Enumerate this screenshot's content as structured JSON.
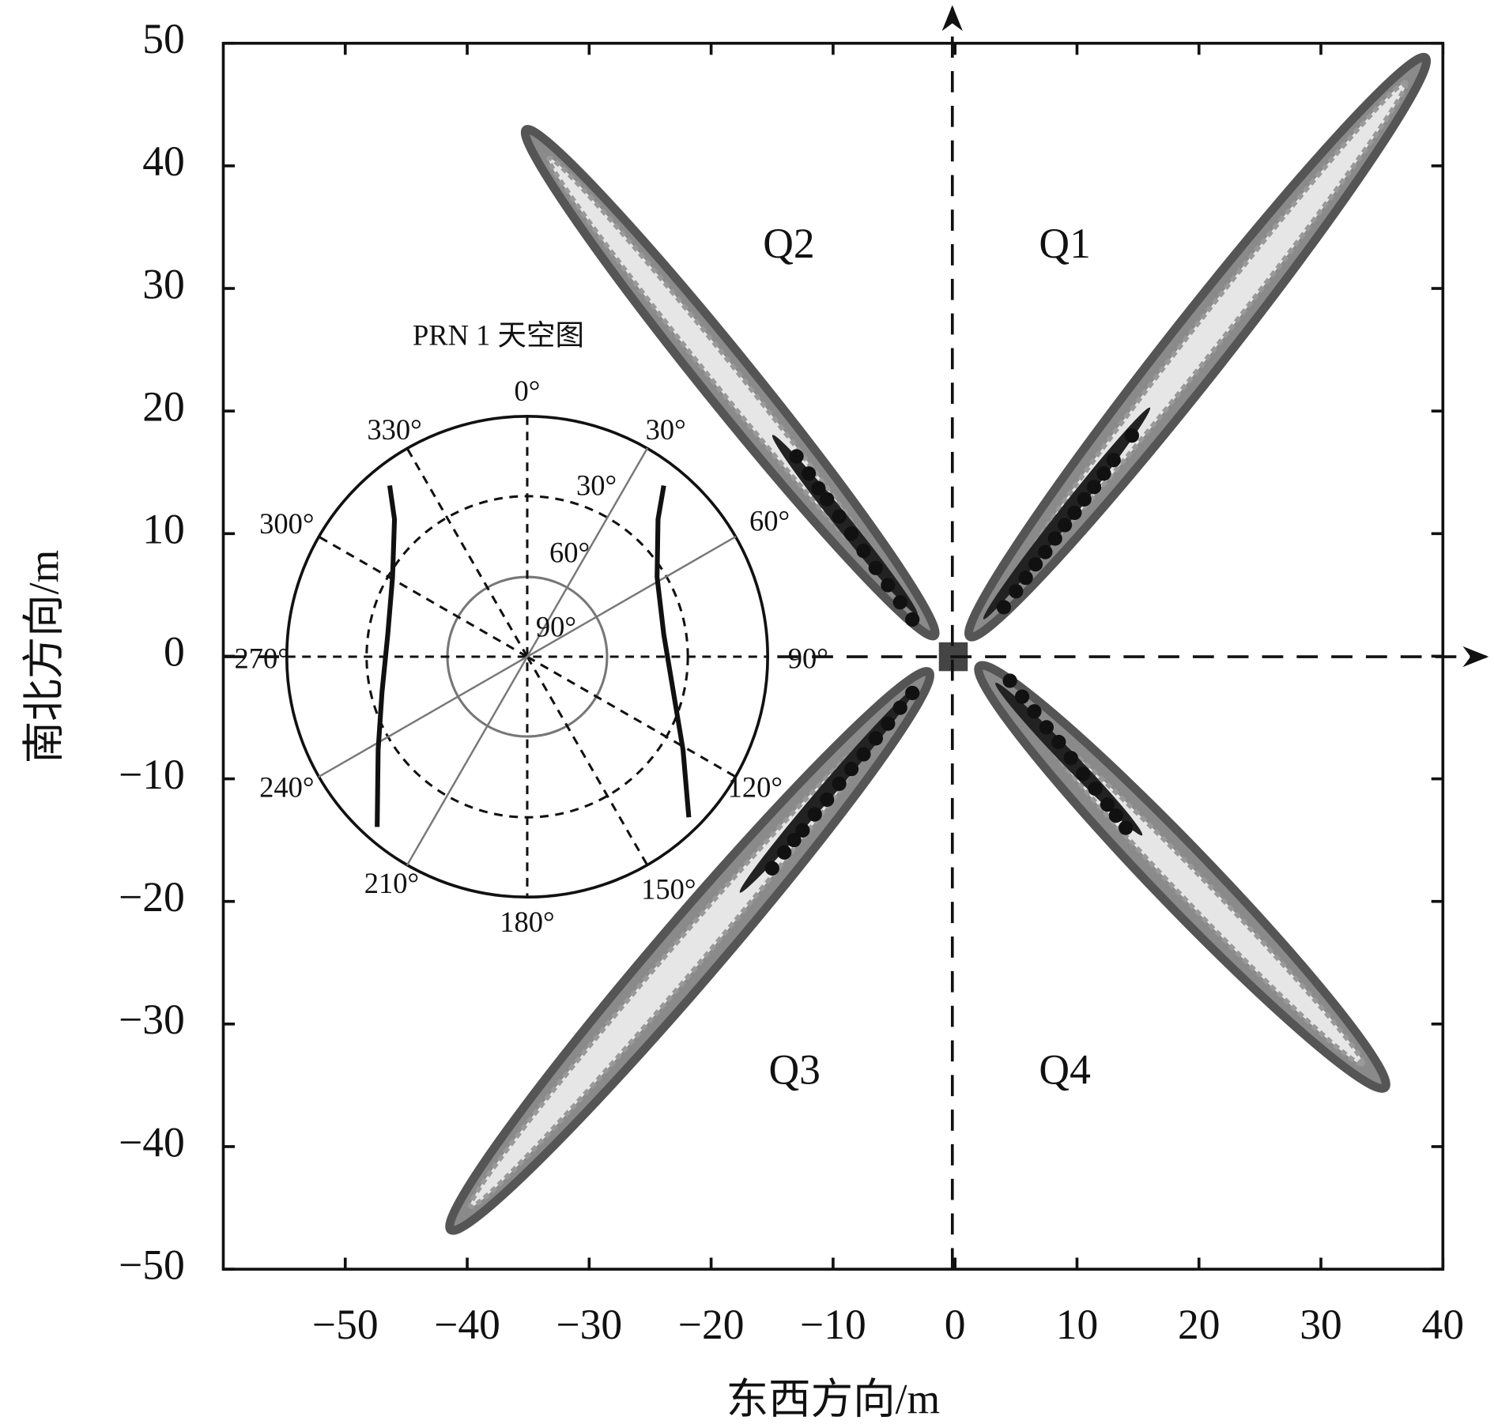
{
  "chart_data": {
    "type": "scatter",
    "x_label": "东西方向/m",
    "y_label": "南北方向/m",
    "xlim": [
      -60,
      40
    ],
    "ylim": [
      -50,
      50
    ],
    "xticks": [
      {
        "value": -50,
        "label": "−50"
      },
      {
        "value": -40,
        "label": "−40"
      },
      {
        "value": -30,
        "label": "−30"
      },
      {
        "value": -20,
        "label": "−20"
      },
      {
        "value": -10,
        "label": "−10"
      },
      0,
      10,
      20,
      30,
      40
    ],
    "yticks": [
      {
        "value": -50,
        "label": "−50"
      },
      {
        "value": -40,
        "label": "−40"
      },
      {
        "value": -30,
        "label": "−30"
      },
      {
        "value": -20,
        "label": "−20"
      },
      {
        "value": -10,
        "label": "−10"
      },
      0,
      10,
      20,
      30,
      40,
      50
    ],
    "grid": false,
    "color": "#111111",
    "quadrant_labels": [
      "Q1",
      "Q2",
      "Q3",
      "Q4"
    ],
    "series": [
      {
        "color": "#111111",
        "x": [
          4,
          5,
          5.8,
          6.6,
          7.4,
          8.2,
          9,
          9.8,
          10.6,
          11.4,
          12.2,
          13,
          14.5
        ],
        "values": [
          4,
          5.3,
          6.4,
          7.5,
          8.5,
          9.6,
          10.7,
          11.7,
          12.8,
          13.8,
          14.9,
          16,
          18
        ]
      },
      {
        "color": "#111111",
        "x": [
          -3.5,
          -4.5,
          -5.5,
          -6.5,
          -7.5,
          -8.5,
          -9.5,
          -10.5,
          -11.2,
          -12,
          -13
        ],
        "values": [
          3,
          4.4,
          5.8,
          7.2,
          8.6,
          10,
          11.4,
          12.8,
          13.7,
          14.9,
          16.3
        ]
      },
      {
        "color": "#111111",
        "x": [
          -3.5,
          -4.5,
          -5.5,
          -6.5,
          -7.5,
          -8.5,
          -9.5,
          -10.5,
          -11.5,
          -12.5,
          -13.2,
          -14,
          -15
        ],
        "values": [
          -3,
          -4.2,
          -5.5,
          -6.7,
          -8,
          -9.2,
          -10.4,
          -11.7,
          -12.9,
          -14.2,
          -15,
          -16,
          -17.3
        ]
      },
      {
        "color": "#111111",
        "x": [
          4.5,
          5.5,
          6.5,
          7.5,
          8.5,
          9.5,
          10.5,
          11.5,
          12.5,
          13.2,
          14
        ],
        "values": [
          -2,
          -3.3,
          -4.5,
          -5.8,
          -7,
          -8.3,
          -9.6,
          -10.8,
          -12.1,
          -13,
          -14
        ]
      }
    ],
    "inset": {
      "title": "PRN 1 天空图",
      "azimuth_labels": [
        "0°",
        "30°",
        "60°",
        "90°",
        "120°",
        "150°",
        "180°",
        "210°",
        "240°",
        "270°",
        "300°",
        "330°"
      ],
      "elevation_labels": [
        "30°",
        "60°",
        "90°"
      ]
    }
  }
}
